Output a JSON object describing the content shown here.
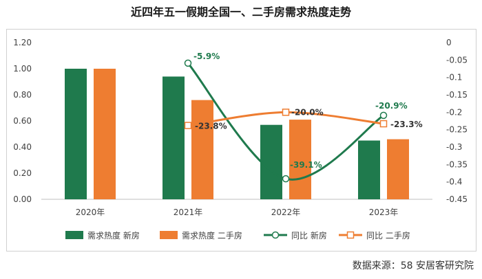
{
  "source": "数据来源：58 安居客研究院",
  "chart_data": {
    "type": "bar",
    "title": "近四年五一假期全国一、二手房需求热度走势",
    "categories": [
      "2020年",
      "2021年",
      "2022年",
      "2023年"
    ],
    "series": [
      {
        "name": "需求热度 新房",
        "kind": "bar",
        "axis": "left",
        "color": "#1f7a4d",
        "values": [
          1.0,
          0.94,
          0.57,
          0.45
        ]
      },
      {
        "name": "需求热度 二手房",
        "kind": "bar",
        "axis": "left",
        "color": "#ee7d31",
        "values": [
          1.0,
          0.76,
          0.61,
          0.46
        ]
      },
      {
        "name": "同比 新房",
        "kind": "line",
        "axis": "right",
        "color": "#1f7a4d",
        "marker": "circle",
        "values": [
          null,
          -0.059,
          -0.391,
          -0.209
        ],
        "labels": [
          "",
          "-5.9%",
          "-39.1%",
          "-20.9%"
        ],
        "label_color": "#1f7a4d"
      },
      {
        "name": "同比 二手房",
        "kind": "line",
        "axis": "right",
        "color": "#ee7d31",
        "marker": "square",
        "values": [
          null,
          -0.238,
          -0.2,
          -0.233
        ],
        "labels": [
          "",
          "-23.8%",
          "-20.0%",
          "-23.3%"
        ],
        "label_color": "#333333"
      }
    ],
    "y_left": {
      "min": 0,
      "max": 1.2,
      "ticks": [
        "0.00",
        "0.20",
        "0.40",
        "0.60",
        "0.80",
        "1.00",
        "1.20"
      ]
    },
    "y_right": {
      "min": -0.45,
      "max": 0,
      "ticks": [
        "0",
        "-0.05",
        "-0.1",
        "-0.15",
        "-0.2",
        "-0.25",
        "-0.3",
        "-0.35",
        "-0.4",
        "-0.45"
      ]
    },
    "legend_position": "bottom"
  }
}
